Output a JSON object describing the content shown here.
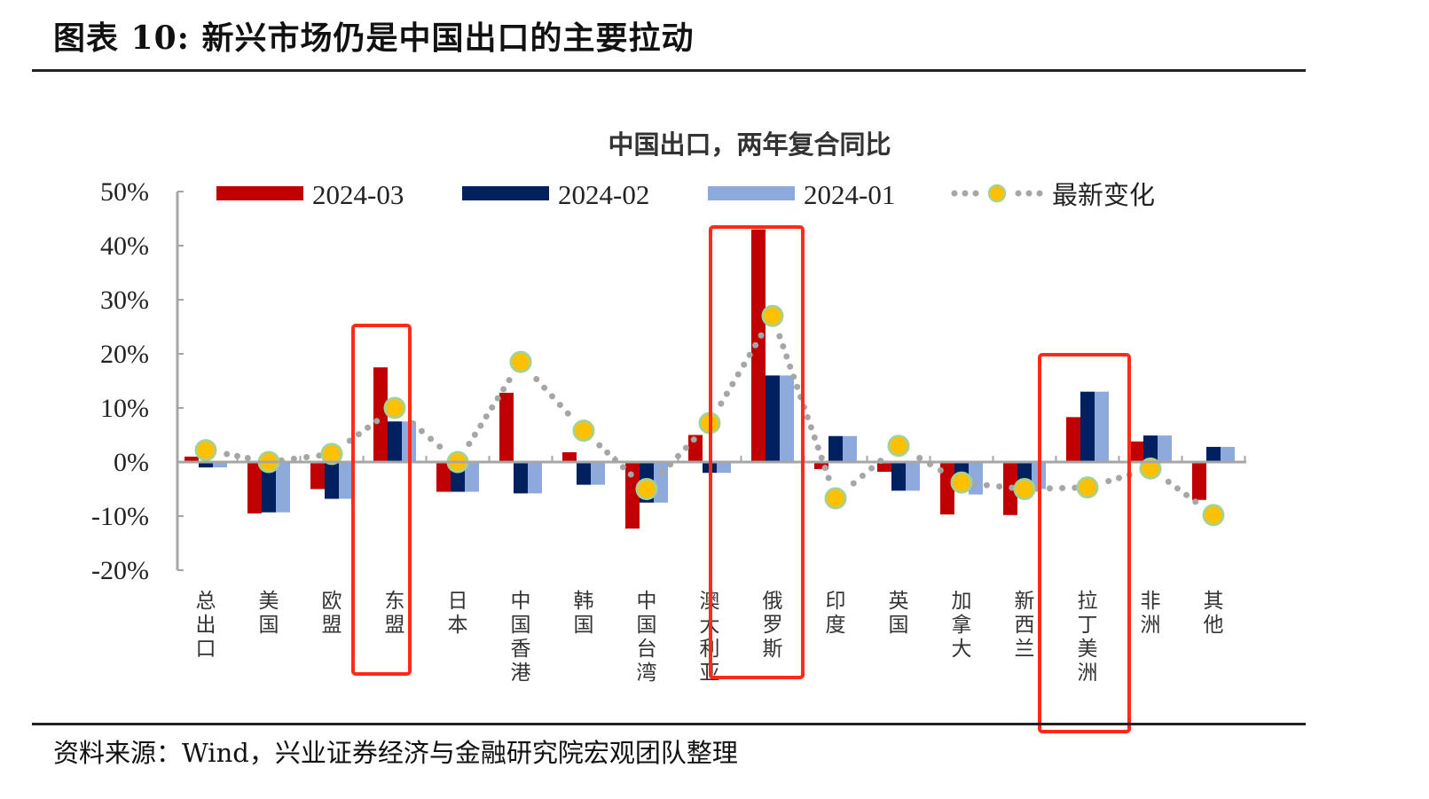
{
  "figure": {
    "title": "图表 10:  新兴市场仍是中国出口的主要拉动",
    "source": "资料来源：Wind，兴业证券经济与金融研究院宏观团队整理"
  },
  "colors": {
    "red": "#C00000",
    "dark_blue": "#002060",
    "light_blue": "#8EA9DB",
    "dot_fill": "#FFC000",
    "dot_stroke": "#A9D18E",
    "dot_line": "#A6A6A6",
    "axis": "#A6A6A6",
    "highlight_box": "#FF2A1A"
  },
  "chart_data": {
    "type": "bar",
    "title": "中国出口，两年复合同比",
    "xlabel": "",
    "ylabel": "",
    "ylim": [
      -20,
      50
    ],
    "yticks": [
      50,
      40,
      30,
      20,
      10,
      0,
      -10,
      -20
    ],
    "ytick_labels": [
      "50%",
      "40%",
      "30%",
      "20%",
      "10%",
      "0%",
      "-10%",
      "-20%"
    ],
    "grid": false,
    "legend_position": "top",
    "categories": [
      "总出口",
      "美国",
      "欧盟",
      "东盟",
      "日本",
      "中国香港",
      "韩国",
      "中国台湾",
      "澳大利亚",
      "俄罗斯",
      "印度",
      "英国",
      "加拿大",
      "新西兰",
      "拉丁美洲",
      "非洲",
      "其他"
    ],
    "series": [
      {
        "name": "2024-03",
        "type": "bar",
        "color": "#C00000",
        "values": [
          1.0,
          -9.5,
          -5.0,
          17.5,
          -5.5,
          12.8,
          1.8,
          -12.3,
          5.0,
          43.0,
          -1.3,
          -1.8,
          -9.7,
          -9.8,
          8.3,
          3.8,
          -7.0
        ]
      },
      {
        "name": "2024-02",
        "type": "bar",
        "color": "#002060",
        "values": [
          -1.0,
          -9.3,
          -6.8,
          7.5,
          -5.5,
          -5.8,
          -4.2,
          -7.5,
          -2.0,
          16.0,
          4.8,
          -5.3,
          -5.2,
          -5.0,
          13.0,
          4.9,
          2.8
        ]
      },
      {
        "name": "2024-01",
        "type": "bar",
        "color": "#8EA9DB",
        "values": [
          -1.0,
          -9.3,
          -6.8,
          7.5,
          -5.5,
          -5.8,
          -4.2,
          -7.5,
          -2.0,
          16.0,
          4.8,
          -5.3,
          -6.0,
          -5.0,
          13.0,
          4.9,
          2.8
        ]
      },
      {
        "name": "最新变化",
        "type": "line-dotted-markers",
        "color": "#FFC000",
        "values": [
          2.2,
          0.0,
          1.5,
          10.0,
          0.0,
          18.5,
          5.8,
          -5.0,
          7.2,
          27.0,
          -6.7,
          3.0,
          -3.8,
          -5.0,
          -4.7,
          -1.2,
          -9.8
        ]
      }
    ],
    "annotations": {
      "highlighted_categories": [
        "东盟",
        "俄罗斯",
        "拉丁美洲"
      ]
    }
  }
}
